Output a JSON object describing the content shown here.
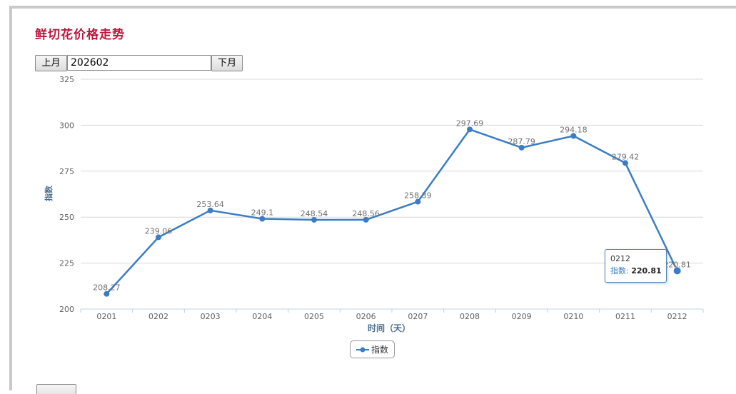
{
  "page": {
    "title": "鲜切花价格走势",
    "prev_label": "上月",
    "next_label": "下月",
    "month_value": "202602"
  },
  "chart_data": {
    "type": "line",
    "title": "",
    "xlabel": "时间（天）",
    "ylabel": "指数",
    "categories": [
      "0201",
      "0202",
      "0203",
      "0204",
      "0205",
      "0206",
      "0207",
      "0208",
      "0209",
      "0210",
      "0211",
      "0212"
    ],
    "series": [
      {
        "name": "指数",
        "values": [
          208.27,
          239.06,
          253.64,
          249.1,
          248.54,
          248.56,
          258.39,
          297.69,
          287.79,
          294.18,
          279.42,
          220.81
        ],
        "labels": [
          "208.27",
          "239.06",
          "253.64",
          "249.1",
          "248.54",
          "248.56",
          "258.39",
          "297.69",
          "287.79",
          "294.18",
          "279.42",
          "220.81"
        ]
      }
    ],
    "ylim": [
      200,
      325
    ],
    "yticks": [
      200,
      225,
      250,
      275,
      300,
      325
    ],
    "grid": true,
    "legend": "bottom-center",
    "line_color": "#3b7dc4"
  },
  "tooltip": {
    "category": "0212",
    "series_name": "指数",
    "value": "220.81"
  }
}
